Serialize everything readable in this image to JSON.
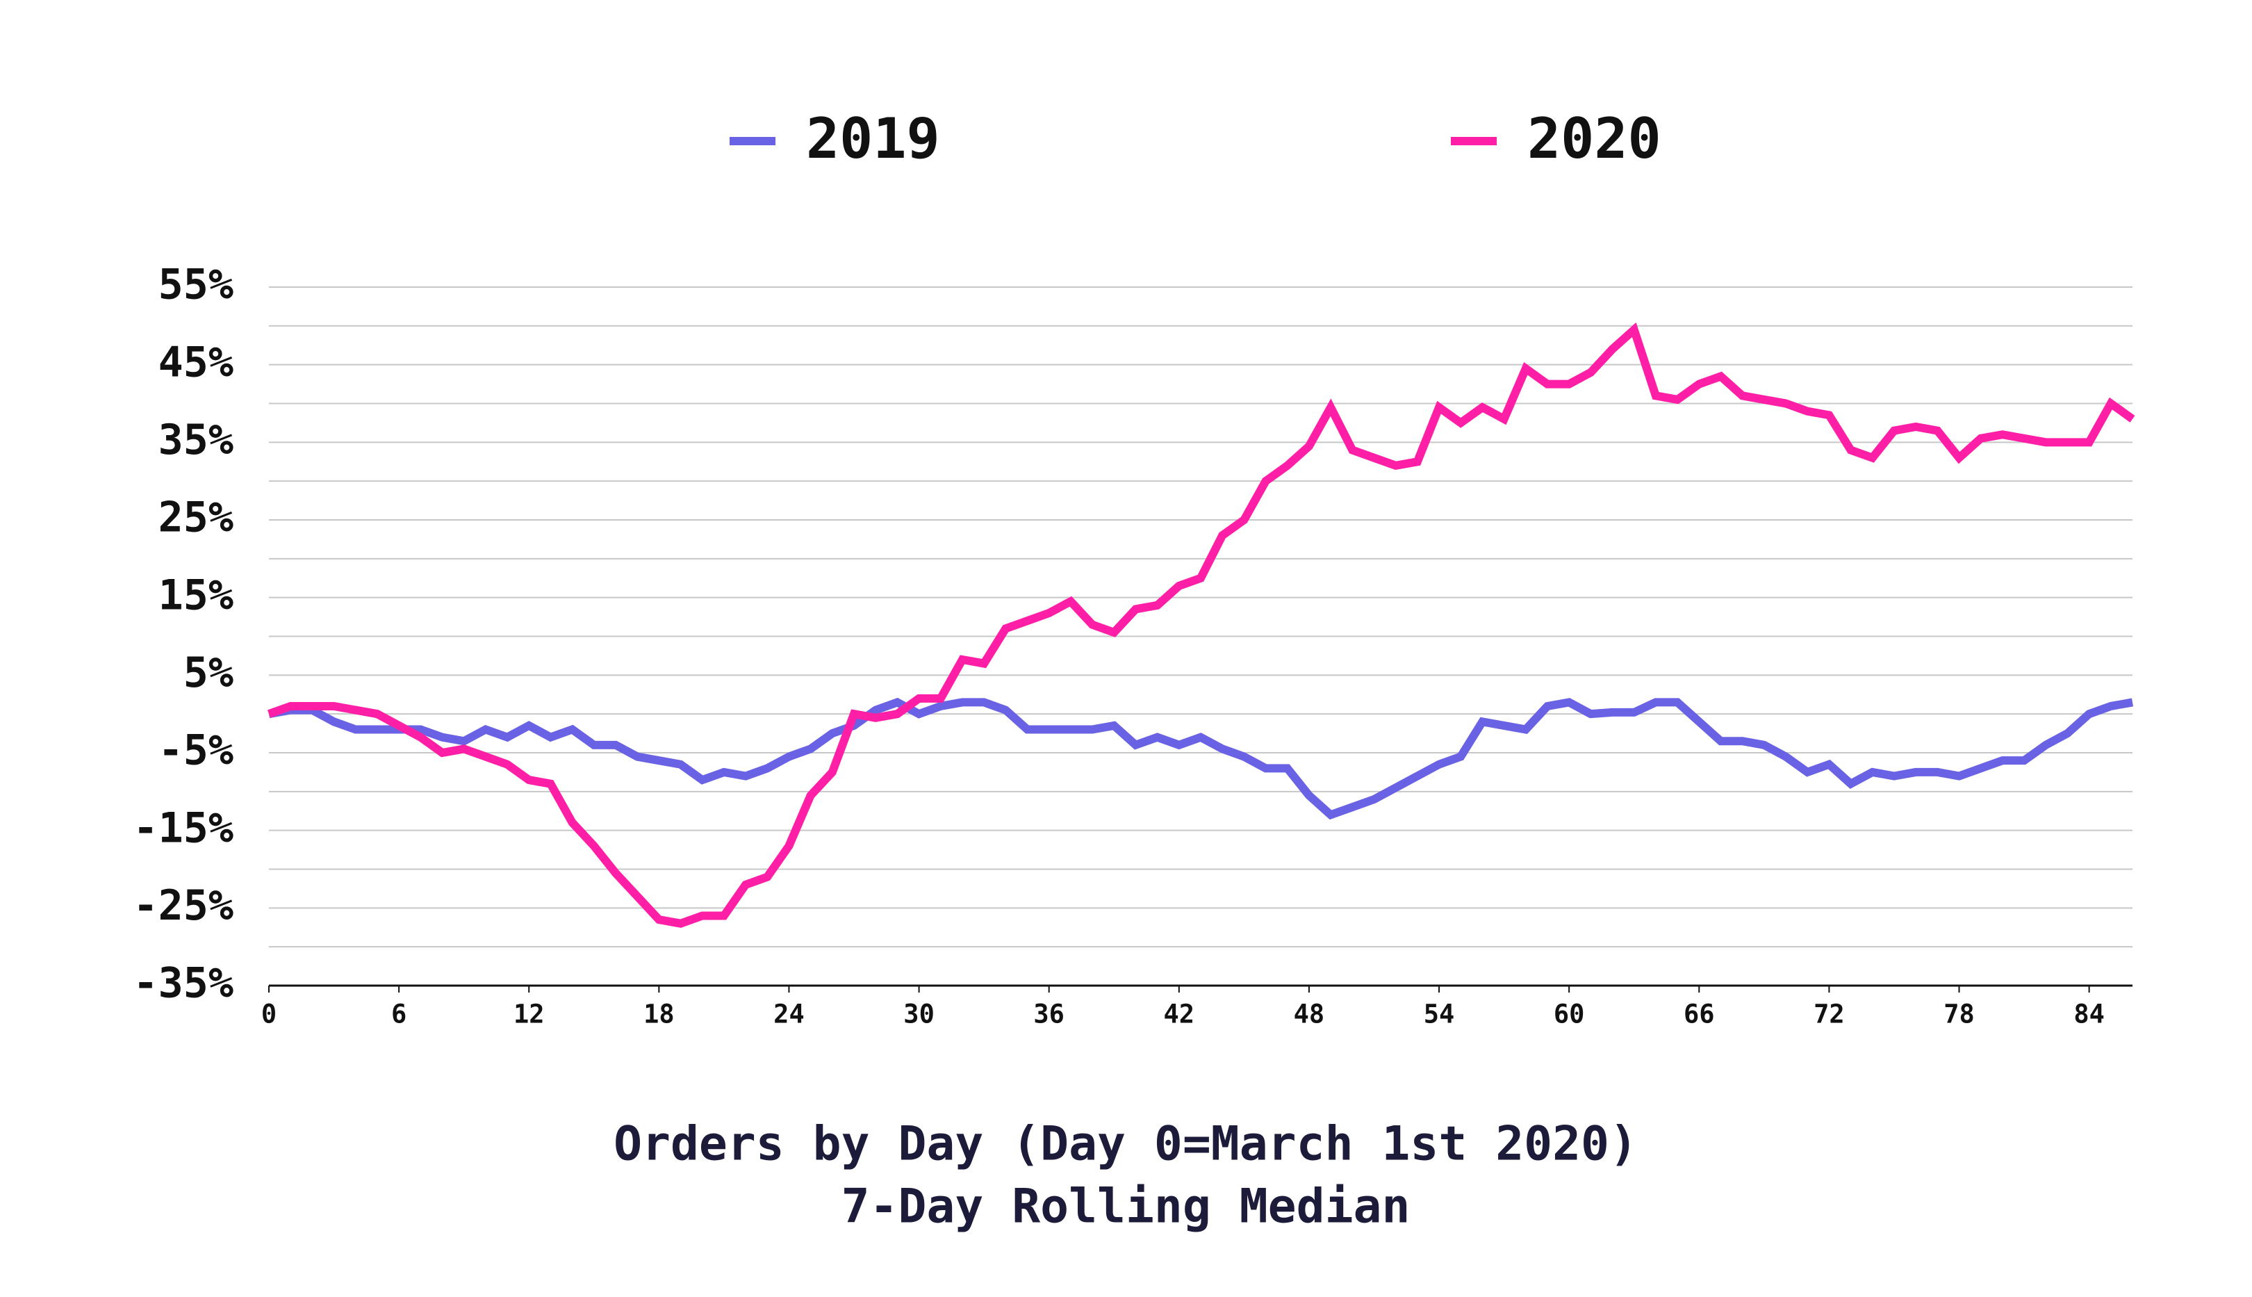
{
  "chart_data": {
    "type": "line",
    "title": "Orders by Day (Day 0=March 1st 2020)",
    "subtitle": "7-Day Rolling Median",
    "x": [
      0,
      1,
      2,
      3,
      4,
      5,
      6,
      7,
      8,
      9,
      10,
      11,
      12,
      13,
      14,
      15,
      16,
      17,
      18,
      19,
      20,
      21,
      22,
      23,
      24,
      25,
      26,
      27,
      28,
      29,
      30,
      31,
      32,
      33,
      34,
      35,
      36,
      37,
      38,
      39,
      40,
      41,
      42,
      43,
      44,
      45,
      46,
      47,
      48,
      49,
      50,
      51,
      52,
      53,
      54,
      55,
      56,
      57,
      58,
      59,
      60,
      61,
      62,
      63,
      64,
      65,
      66,
      67,
      68,
      69,
      70,
      71,
      72,
      73,
      74,
      75,
      76,
      77,
      78,
      79,
      80,
      81,
      82,
      83,
      84,
      85,
      86
    ],
    "series": [
      {
        "name": "2019",
        "color": "#6a62e4",
        "values": [
          0,
          0.5,
          0.5,
          -1,
          -2,
          -2,
          -2,
          -2,
          -3,
          -3.5,
          -2,
          -3,
          -1.5,
          -3,
          -2,
          -4,
          -4,
          -5.5,
          -6,
          -6.5,
          -8.5,
          -7.5,
          -8,
          -7,
          -5.5,
          -4.5,
          -2.5,
          -1.5,
          0.5,
          1.5,
          0,
          1,
          1.5,
          1.5,
          0.5,
          -2,
          -2,
          -2,
          -2,
          -1.5,
          -4,
          -3,
          -4,
          -3,
          -4.5,
          -5.5,
          -7,
          -7,
          -10.5,
          -13,
          -12,
          -11,
          -9.5,
          -8,
          -6.5,
          -5.5,
          -1,
          -1.5,
          -2,
          1,
          1.5,
          0,
          0.2,
          0.2,
          1.5,
          1.5,
          -1,
          -3.5,
          -3.5,
          -4,
          -5.5,
          -7.5,
          -6.5,
          -9,
          -7.5,
          -8,
          -7.5,
          -7.5,
          -8,
          -7,
          -6,
          -6,
          -4,
          -2.5,
          0,
          1,
          1.5
        ]
      },
      {
        "name": "2020",
        "color": "#ff1fa6",
        "values": [
          0,
          1,
          1,
          1,
          0.5,
          0,
          -1.5,
          -3,
          -5,
          -4.5,
          -5.5,
          -6.5,
          -8.5,
          -9,
          -14,
          -17,
          -20.5,
          -23.5,
          -26.5,
          -27,
          -26,
          -26,
          -22,
          -21,
          -17,
          -10.5,
          -7.5,
          0,
          -0.5,
          0,
          2,
          2,
          7,
          6.5,
          11,
          12,
          13,
          14.5,
          11.5,
          10.5,
          13.5,
          14,
          16.5,
          17.5,
          23,
          25,
          30,
          32,
          34.5,
          39.5,
          34,
          33,
          32,
          32.5,
          39.5,
          37.5,
          39.5,
          38,
          44.5,
          42.5,
          42.5,
          44,
          47,
          49.5,
          41,
          40.5,
          42.5,
          43.5,
          41,
          40.5,
          40,
          39,
          38.5,
          34,
          33,
          36.5,
          37,
          36.5,
          33,
          35.5,
          36,
          35.5,
          35,
          35,
          35,
          40,
          38
        ]
      }
    ],
    "xlim": [
      0,
      86
    ],
    "xticks": [
      0,
      6,
      12,
      18,
      24,
      30,
      36,
      42,
      48,
      54,
      60,
      66,
      72,
      78,
      84
    ],
    "ylim": [
      -35,
      55
    ],
    "yticks": [
      {
        "value": -35,
        "label": "-35%"
      },
      {
        "value": -25,
        "label": "-25%"
      },
      {
        "value": -15,
        "label": "-15%"
      },
      {
        "value": -5,
        "label": "-5%"
      },
      {
        "value": 5,
        "label": "5%"
      },
      {
        "value": 15,
        "label": "15%"
      },
      {
        "value": 25,
        "label": "25%"
      },
      {
        "value": 35,
        "label": "35%"
      },
      {
        "value": 45,
        "label": "45%"
      },
      {
        "value": 55,
        "label": "55%"
      }
    ],
    "minor_yticks": [
      -30,
      -20,
      -10,
      0,
      10,
      20,
      30,
      40,
      50
    ],
    "grid": true,
    "legend": "top"
  }
}
